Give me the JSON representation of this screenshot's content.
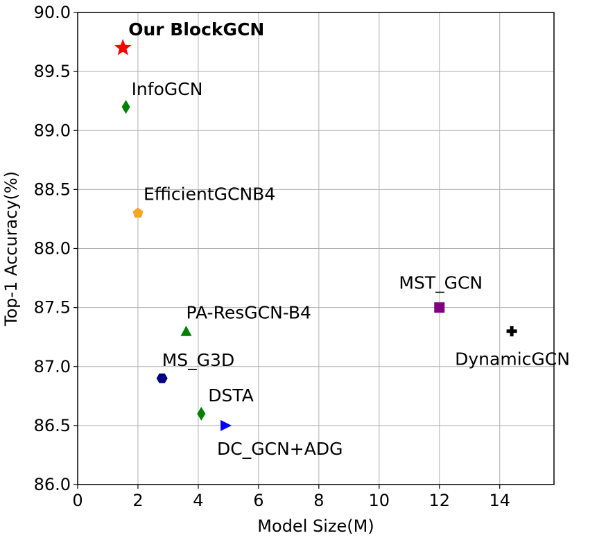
{
  "chart_data": {
    "type": "scatter",
    "title": "",
    "xlabel": "Model Size(M)",
    "ylabel": "Top-1 Accuracy(%)",
    "xlim": [
      0,
      15.8
    ],
    "ylim": [
      86.0,
      90.0
    ],
    "xticks": [
      0,
      2,
      4,
      6,
      8,
      10,
      12,
      14
    ],
    "yticks": [
      86.0,
      86.5,
      87.0,
      87.5,
      88.0,
      88.5,
      89.0,
      89.5,
      90.0
    ],
    "grid": true,
    "points": [
      {
        "label": "Our BlockGCN",
        "x": 1.5,
        "y": 89.7,
        "marker": "star",
        "color": "#ff0000",
        "bold": true
      },
      {
        "label": "InfoGCN",
        "x": 1.6,
        "y": 89.2,
        "marker": "thin-diamond",
        "color": "#008000"
      },
      {
        "label": "EfficientGCNB4",
        "x": 2.0,
        "y": 88.3,
        "marker": "pentagon",
        "color": "#f5a623"
      },
      {
        "label": "PA-ResGCN-B4",
        "x": 3.6,
        "y": 87.3,
        "marker": "triangle-up",
        "color": "#008000"
      },
      {
        "label": "MS_G3D",
        "x": 2.8,
        "y": 86.9,
        "marker": "hexagon",
        "color": "#000080"
      },
      {
        "label": "DSTA",
        "x": 4.1,
        "y": 86.6,
        "marker": "thin-diamond",
        "color": "#008000"
      },
      {
        "label": "DC_GCN+ADG",
        "x": 4.9,
        "y": 86.5,
        "marker": "triangle-right",
        "color": "#0000ff"
      },
      {
        "label": "MST_GCN",
        "x": 12.0,
        "y": 87.5,
        "marker": "square",
        "color": "#800080"
      },
      {
        "label": "DynamicGCN",
        "x": 14.4,
        "y": 87.3,
        "marker": "plus",
        "color": "#000000"
      }
    ]
  }
}
